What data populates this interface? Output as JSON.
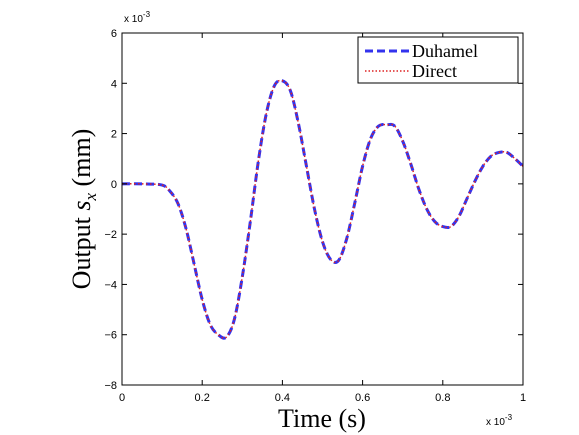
{
  "chart_data": {
    "type": "line",
    "xlabel": "Time (s)",
    "ylabel_prefix": "Output ",
    "ylabel_var": "s",
    "ylabel_sub": "x",
    "ylabel_unit": " (mm)",
    "x_multiplier": "x 10",
    "x_multiplier_exp": "-3",
    "y_multiplier": "x 10",
    "y_multiplier_exp": "-3",
    "xlim": [
      0,
      1
    ],
    "ylim": [
      -8,
      6
    ],
    "x_ticks": [
      0,
      0.2,
      0.4,
      0.6,
      0.8,
      1
    ],
    "x_tick_labels": [
      "0",
      "0.2",
      "0.4",
      "0.6",
      "0.8",
      "1"
    ],
    "y_ticks": [
      -8,
      -6,
      -4,
      -2,
      0,
      2,
      4,
      6
    ],
    "y_tick_labels": [
      "−8",
      "−6",
      "−4",
      "−2",
      "0",
      "2",
      "4",
      "6"
    ],
    "grid": false,
    "legend_position": "top-right",
    "series": [
      {
        "name": "Duhamel",
        "color": "#3333ee",
        "style": "dashed",
        "x": [
          0,
          0.05,
          0.1,
          0.12,
          0.14,
          0.16,
          0.18,
          0.2,
          0.22,
          0.24,
          0.26,
          0.28,
          0.3,
          0.32,
          0.34,
          0.36,
          0.38,
          0.4,
          0.42,
          0.44,
          0.46,
          0.48,
          0.5,
          0.52,
          0.54,
          0.56,
          0.58,
          0.6,
          0.62,
          0.64,
          0.66,
          0.68,
          0.7,
          0.72,
          0.74,
          0.76,
          0.78,
          0.8,
          0.82,
          0.84,
          0.86,
          0.88,
          0.9,
          0.92,
          0.94,
          0.96,
          0.98,
          1.0
        ],
        "y": [
          0,
          0,
          -0.05,
          -0.3,
          -0.8,
          -1.8,
          -3.2,
          -4.6,
          -5.6,
          -6.0,
          -6.1,
          -5.4,
          -3.7,
          -1.5,
          0.9,
          2.8,
          3.9,
          4.1,
          3.7,
          2.4,
          0.7,
          -1.0,
          -2.3,
          -3.0,
          -3.05,
          -2.2,
          -0.8,
          0.7,
          1.8,
          2.3,
          2.35,
          2.3,
          1.7,
          0.8,
          -0.2,
          -1.0,
          -1.5,
          -1.7,
          -1.7,
          -1.3,
          -0.6,
          0.1,
          0.7,
          1.1,
          1.25,
          1.25,
          1.0,
          0.7
        ]
      },
      {
        "name": "Direct",
        "color": "#dd2222",
        "style": "dotted",
        "x": [
          0,
          0.05,
          0.1,
          0.12,
          0.14,
          0.16,
          0.18,
          0.2,
          0.22,
          0.24,
          0.26,
          0.28,
          0.3,
          0.32,
          0.34,
          0.36,
          0.38,
          0.4,
          0.42,
          0.44,
          0.46,
          0.48,
          0.5,
          0.52,
          0.54,
          0.56,
          0.58,
          0.6,
          0.62,
          0.64,
          0.66,
          0.68,
          0.7,
          0.72,
          0.74,
          0.76,
          0.78,
          0.8,
          0.82,
          0.84,
          0.86,
          0.88,
          0.9,
          0.92,
          0.94,
          0.96,
          0.98,
          1.0
        ],
        "y": [
          0,
          0,
          -0.05,
          -0.3,
          -0.8,
          -1.8,
          -3.2,
          -4.6,
          -5.6,
          -6.0,
          -6.1,
          -5.4,
          -3.7,
          -1.5,
          0.9,
          2.8,
          3.9,
          4.1,
          3.7,
          2.4,
          0.7,
          -1.0,
          -2.3,
          -3.0,
          -3.05,
          -2.2,
          -0.8,
          0.7,
          1.8,
          2.3,
          2.35,
          2.3,
          1.7,
          0.8,
          -0.2,
          -1.0,
          -1.5,
          -1.7,
          -1.7,
          -1.3,
          -0.6,
          0.1,
          0.7,
          1.1,
          1.25,
          1.25,
          1.0,
          0.7
        ]
      }
    ]
  }
}
